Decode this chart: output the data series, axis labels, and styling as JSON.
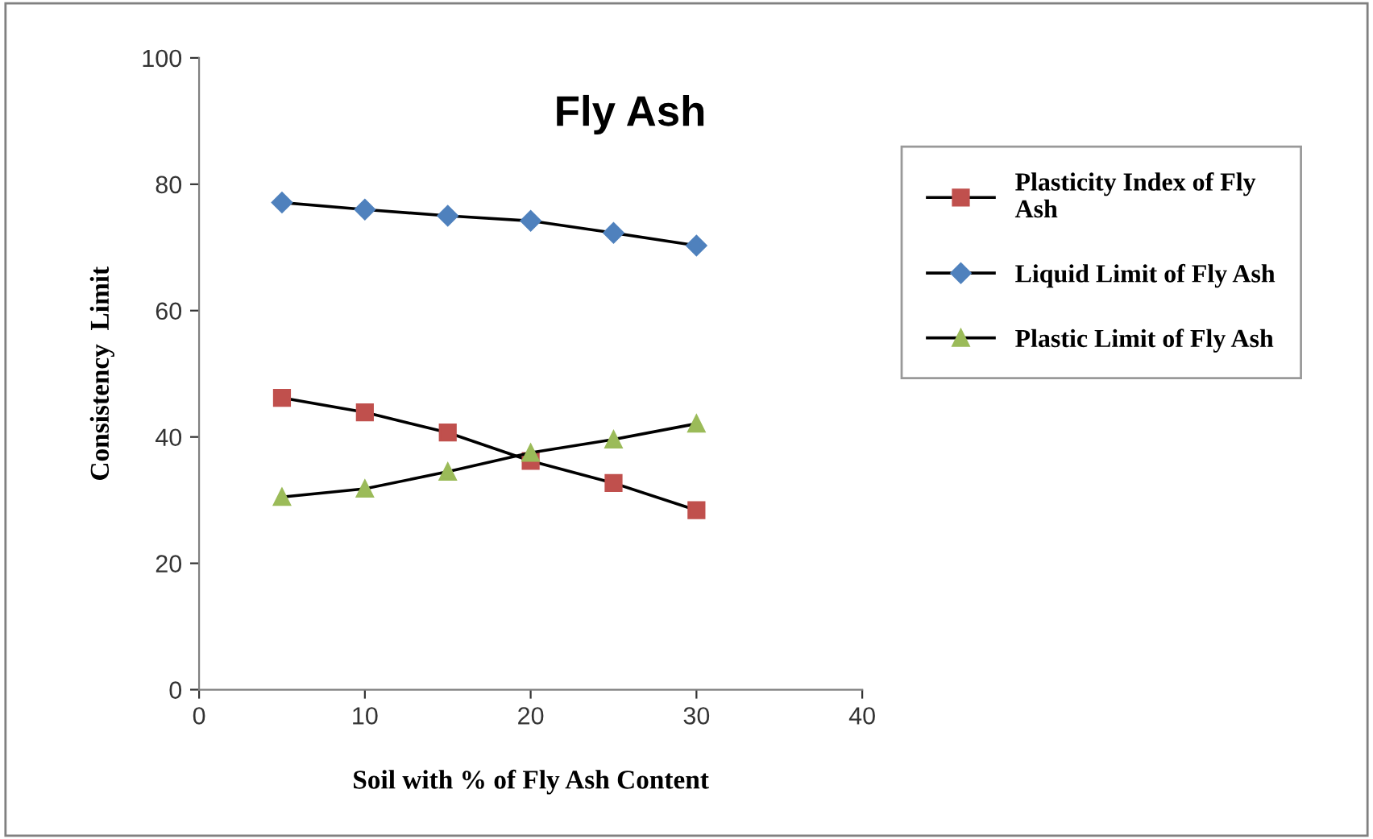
{
  "chart_data": {
    "type": "line",
    "title": "Fly Ash",
    "xlabel": "Soil with % of Fly Ash Content",
    "ylabel": "Consistency  Limit",
    "x": [
      5,
      10,
      15,
      20,
      25,
      30
    ],
    "series": [
      {
        "name": "Plasticity Index of Fly Ash",
        "color": "#c0504d",
        "marker": "square",
        "values": [
          46.2,
          43.9,
          40.7,
          36.2,
          32.7,
          28.4
        ]
      },
      {
        "name": "Liquid Limit of Fly Ash",
        "color": "#4f81bd",
        "marker": "diamond",
        "values": [
          77.1,
          76.0,
          75.0,
          74.2,
          72.3,
          70.3
        ]
      },
      {
        "name": "Plastic Limit of Fly Ash",
        "color": "#9bbb59",
        "marker": "triangle",
        "values": [
          30.5,
          31.8,
          34.5,
          37.5,
          39.6,
          42.1
        ]
      }
    ],
    "xlim": [
      0,
      40
    ],
    "xticks": [
      0,
      10,
      20,
      30,
      40
    ],
    "ylim": [
      0,
      100
    ],
    "yticks": [
      0,
      20,
      40,
      60,
      80,
      100
    ],
    "grid": false,
    "legend": "right",
    "line_style": "solid"
  }
}
